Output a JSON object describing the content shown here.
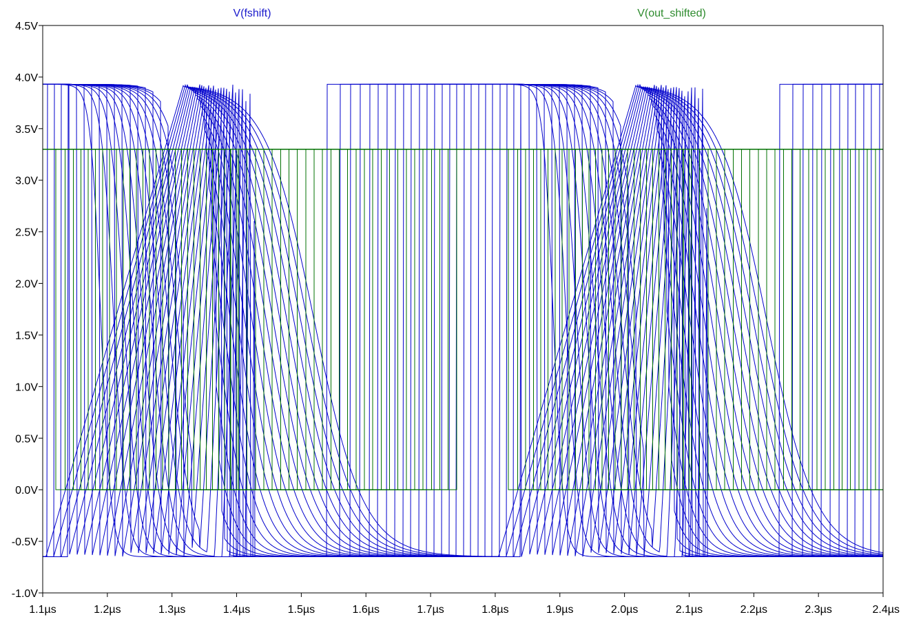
{
  "chart_data": {
    "type": "line",
    "title": "",
    "xlabel": "",
    "ylabel": "",
    "xlim": [
      1.1,
      2.4
    ],
    "ylim": [
      -1.0,
      4.5
    ],
    "x_unit": "µs",
    "y_unit": "V",
    "x_ticks": [
      "1.1µs",
      "1.2µs",
      "1.3µs",
      "1.4µs",
      "1.5µs",
      "1.6µs",
      "1.7µs",
      "1.8µs",
      "1.9µs",
      "2.0µs",
      "2.1µs",
      "2.2µs",
      "2.3µs",
      "2.4µs"
    ],
    "y_ticks": [
      "4.5V",
      "4.0V",
      "3.5V",
      "3.0V",
      "2.5V",
      "2.0V",
      "1.5V",
      "1.0V",
      "0.5V",
      "0.0V",
      "-0.5V",
      "-1.0V"
    ],
    "grid": false,
    "series": [
      {
        "name": "V(fshift)",
        "color": "#0000cc",
        "kind": "stepped sweep",
        "high": 3.93,
        "low": -0.65,
        "period": 0.7,
        "rise_start_first": 1.425,
        "fall_mid_first": 1.19,
        "curves": 28
      },
      {
        "name": "V(out_shifted)",
        "color": "#007000",
        "kind": "square sweep",
        "high": 3.3,
        "low": 0.0,
        "period": 0.7,
        "curves": 28
      }
    ]
  },
  "legend": {
    "blue_label": "V(fshift)",
    "green_label": "V(out_shifted)"
  },
  "colors": {
    "frame": "#000000",
    "background": "#ffffff"
  }
}
